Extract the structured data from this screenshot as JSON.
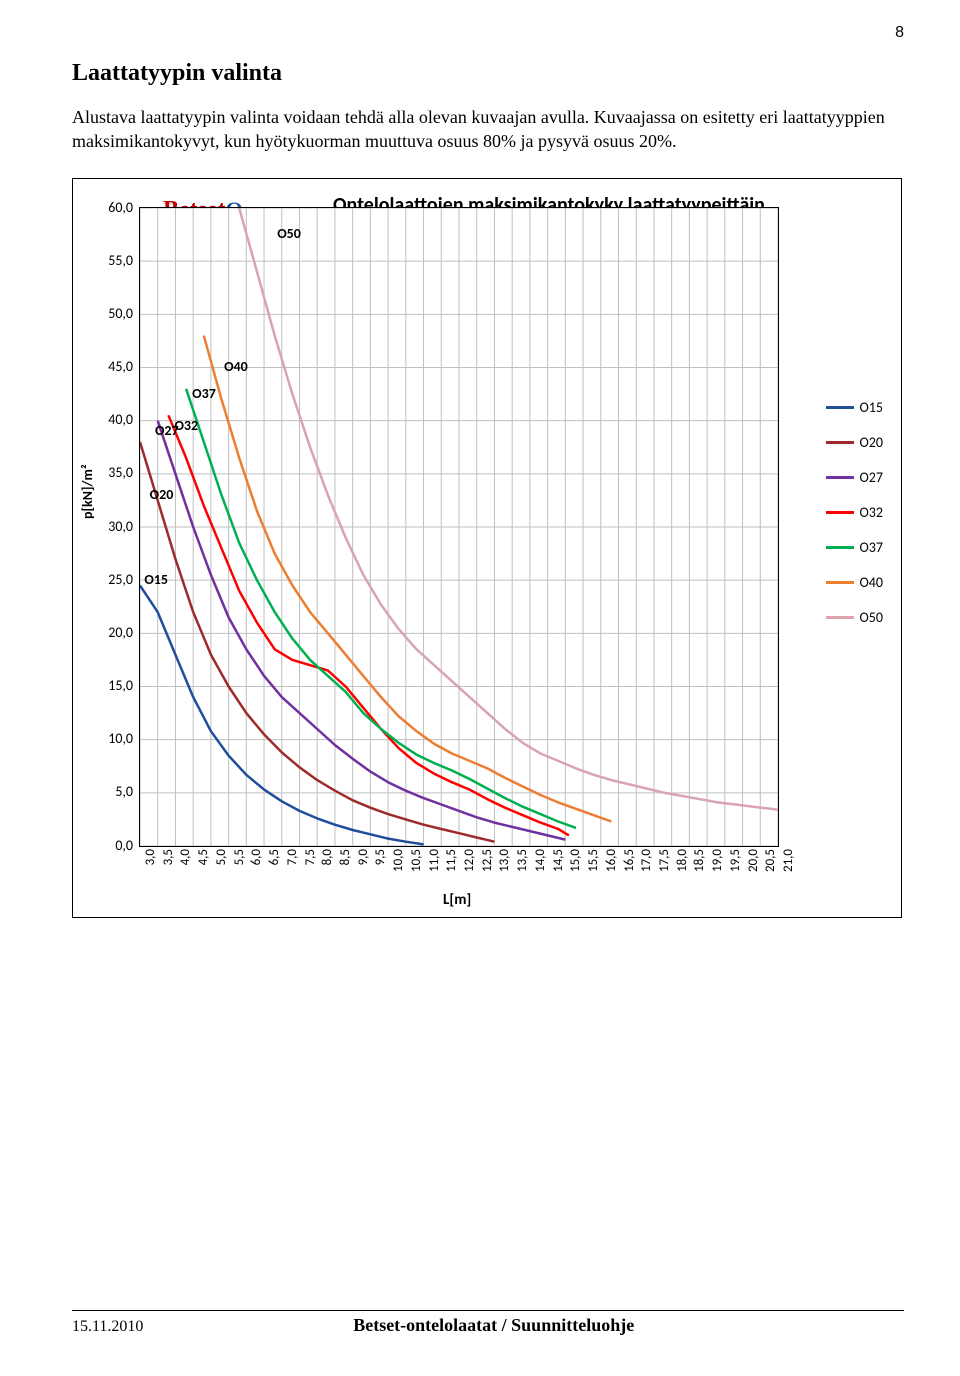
{
  "page_number": "8",
  "heading": "Laattatyypin valinta",
  "body": "Alustava laattatyypin valinta voidaan tehdä alla olevan kuvaajan avulla. Kuvaajassa on esitetty eri laattatyyppien maksimikantokyvyt, kun hyötykuorman muuttuva osuus 80% ja pysyvä osuus 20%.",
  "chart": {
    "title": "Ontelolaattojen maksimikantokyky laattatyypeittäin",
    "logo_main": "Betset",
    "logo_suffix": "Oy",
    "y_ticks": [
      "0,0",
      "5,0",
      "10,0",
      "15,0",
      "20,0",
      "25,0",
      "30,0",
      "35,0",
      "40,0",
      "45,0",
      "50,0",
      "55,0",
      "60,0"
    ],
    "y_label": "p[kN]/m²",
    "y_min": 0,
    "y_max": 60,
    "x_ticks": [
      "3,0",
      "3,5",
      "4,0",
      "4,5",
      "5,0",
      "5,5",
      "6,0",
      "6,5",
      "7,0",
      "7,5",
      "8,0",
      "8,5",
      "9,0",
      "9,5",
      "10,0",
      "10,5",
      "11,0",
      "11,5",
      "12,0",
      "12,5",
      "13,0",
      "13,5",
      "14,0",
      "14,5",
      "15,0",
      "15,5",
      "16,0",
      "16,5",
      "17,0",
      "17,5",
      "18,0",
      "18,5",
      "19,0",
      "19,5",
      "20,0",
      "20,5",
      "21,0"
    ],
    "x_label": "L[m]",
    "x_min": 3.0,
    "x_max": 21.0,
    "grid_color": "#bfbfbf",
    "series": [
      {
        "name": "O15",
        "color": "#1f4e9c",
        "label_pos": {
          "x": 3.15,
          "y": 25.0
        },
        "points": [
          [
            3.0,
            24.5
          ],
          [
            3.5,
            22.0
          ],
          [
            4.0,
            18.0
          ],
          [
            4.5,
            14.0
          ],
          [
            5.0,
            10.8
          ],
          [
            5.5,
            8.5
          ],
          [
            6.0,
            6.7
          ],
          [
            6.5,
            5.3
          ],
          [
            7.0,
            4.2
          ],
          [
            7.5,
            3.3
          ],
          [
            8.0,
            2.6
          ],
          [
            8.5,
            2.0
          ],
          [
            9.0,
            1.5
          ],
          [
            9.5,
            1.1
          ],
          [
            10.0,
            0.7
          ],
          [
            10.5,
            0.4
          ],
          [
            11.0,
            0.15
          ]
        ]
      },
      {
        "name": "O20",
        "color": "#9e2b2b",
        "label_pos": {
          "x": 3.3,
          "y": 33.0
        },
        "points": [
          [
            3.0,
            38.0
          ],
          [
            3.5,
            32.5
          ],
          [
            4.0,
            27.0
          ],
          [
            4.5,
            22.0
          ],
          [
            5.0,
            18.0
          ],
          [
            5.5,
            15.0
          ],
          [
            6.0,
            12.5
          ],
          [
            6.5,
            10.5
          ],
          [
            7.0,
            8.8
          ],
          [
            7.5,
            7.4
          ],
          [
            8.0,
            6.2
          ],
          [
            8.5,
            5.2
          ],
          [
            9.0,
            4.3
          ],
          [
            9.5,
            3.6
          ],
          [
            10.0,
            3.0
          ],
          [
            10.5,
            2.5
          ],
          [
            11.0,
            2.0
          ],
          [
            11.5,
            1.6
          ],
          [
            12.0,
            1.2
          ],
          [
            12.5,
            0.8
          ],
          [
            13.0,
            0.4
          ]
        ]
      },
      {
        "name": "O27",
        "color": "#7030a0",
        "label_pos": {
          "x": 3.45,
          "y": 39.0
        },
        "points": [
          [
            3.5,
            40.0
          ],
          [
            4.0,
            35.0
          ],
          [
            4.5,
            30.0
          ],
          [
            5.0,
            25.5
          ],
          [
            5.5,
            21.5
          ],
          [
            6.0,
            18.5
          ],
          [
            6.5,
            16.0
          ],
          [
            7.0,
            14.0
          ],
          [
            7.5,
            12.5
          ],
          [
            8.0,
            11.0
          ],
          [
            8.5,
            9.5
          ],
          [
            9.0,
            8.2
          ],
          [
            9.5,
            7.0
          ],
          [
            10.0,
            6.0
          ],
          [
            10.5,
            5.2
          ],
          [
            11.0,
            4.5
          ],
          [
            11.5,
            3.9
          ],
          [
            12.0,
            3.3
          ],
          [
            12.5,
            2.7
          ],
          [
            13.0,
            2.2
          ],
          [
            13.5,
            1.8
          ],
          [
            14.0,
            1.4
          ],
          [
            14.5,
            1.0
          ],
          [
            15.0,
            0.6
          ]
        ]
      },
      {
        "name": "O32",
        "color": "#ff0000",
        "label_pos": {
          "x": 4.0,
          "y": 39.5
        },
        "points": [
          [
            3.8,
            40.5
          ],
          [
            4.3,
            36.5
          ],
          [
            4.8,
            32.0
          ],
          [
            5.3,
            28.0
          ],
          [
            5.8,
            24.0
          ],
          [
            6.3,
            21.0
          ],
          [
            6.8,
            18.5
          ],
          [
            7.3,
            17.5
          ],
          [
            7.8,
            17.0
          ],
          [
            8.3,
            16.5
          ],
          [
            8.8,
            15.0
          ],
          [
            9.3,
            13.0
          ],
          [
            9.8,
            11.0
          ],
          [
            10.3,
            9.2
          ],
          [
            10.8,
            7.8
          ],
          [
            11.3,
            6.8
          ],
          [
            11.8,
            6.0
          ],
          [
            12.3,
            5.3
          ],
          [
            12.8,
            4.4
          ],
          [
            13.3,
            3.6
          ],
          [
            13.8,
            2.9
          ],
          [
            14.3,
            2.2
          ],
          [
            14.8,
            1.6
          ],
          [
            15.1,
            1.0
          ]
        ]
      },
      {
        "name": "O37",
        "color": "#00b050",
        "label_pos": {
          "x": 4.5,
          "y": 42.5
        },
        "points": [
          [
            4.3,
            43.0
          ],
          [
            4.8,
            38.0
          ],
          [
            5.3,
            33.0
          ],
          [
            5.8,
            28.5
          ],
          [
            6.3,
            25.0
          ],
          [
            6.8,
            22.0
          ],
          [
            7.3,
            19.5
          ],
          [
            7.8,
            17.5
          ],
          [
            8.3,
            16.0
          ],
          [
            8.8,
            14.5
          ],
          [
            9.3,
            12.5
          ],
          [
            9.8,
            11.0
          ],
          [
            10.3,
            9.7
          ],
          [
            10.8,
            8.6
          ],
          [
            11.3,
            7.8
          ],
          [
            11.8,
            7.1
          ],
          [
            12.3,
            6.3
          ],
          [
            12.8,
            5.4
          ],
          [
            13.3,
            4.5
          ],
          [
            13.8,
            3.7
          ],
          [
            14.3,
            3.0
          ],
          [
            14.8,
            2.3
          ],
          [
            15.3,
            1.7
          ]
        ]
      },
      {
        "name": "O40",
        "color": "#ed7d31",
        "label_pos": {
          "x": 5.4,
          "y": 45.0
        },
        "points": [
          [
            4.8,
            48.0
          ],
          [
            5.3,
            42.0
          ],
          [
            5.8,
            36.5
          ],
          [
            6.3,
            31.5
          ],
          [
            6.8,
            27.5
          ],
          [
            7.3,
            24.5
          ],
          [
            7.8,
            22.0
          ],
          [
            8.3,
            20.0
          ],
          [
            8.8,
            18.0
          ],
          [
            9.3,
            16.0
          ],
          [
            9.8,
            14.0
          ],
          [
            10.3,
            12.2
          ],
          [
            10.8,
            10.8
          ],
          [
            11.3,
            9.6
          ],
          [
            11.8,
            8.7
          ],
          [
            12.3,
            8.0
          ],
          [
            12.8,
            7.3
          ],
          [
            13.3,
            6.4
          ],
          [
            13.8,
            5.6
          ],
          [
            14.3,
            4.8
          ],
          [
            14.8,
            4.1
          ],
          [
            15.3,
            3.5
          ],
          [
            15.8,
            2.9
          ],
          [
            16.3,
            2.3
          ]
        ]
      },
      {
        "name": "O50",
        "color": "#d9a3b0",
        "label_pos": {
          "x": 6.9,
          "y": 57.5
        },
        "points": [
          [
            5.8,
            60.0
          ],
          [
            6.3,
            54.0
          ],
          [
            6.8,
            48.0
          ],
          [
            7.3,
            42.5
          ],
          [
            7.8,
            37.5
          ],
          [
            8.3,
            33.0
          ],
          [
            8.8,
            29.0
          ],
          [
            9.3,
            25.5
          ],
          [
            9.8,
            22.7
          ],
          [
            10.3,
            20.4
          ],
          [
            10.8,
            18.5
          ],
          [
            11.3,
            17.0
          ],
          [
            11.8,
            15.5
          ],
          [
            12.3,
            14.0
          ],
          [
            12.8,
            12.5
          ],
          [
            13.3,
            11.0
          ],
          [
            13.8,
            9.7
          ],
          [
            14.3,
            8.7
          ],
          [
            14.8,
            8.0
          ],
          [
            15.3,
            7.3
          ],
          [
            15.8,
            6.7
          ],
          [
            16.3,
            6.2
          ],
          [
            16.8,
            5.8
          ],
          [
            17.3,
            5.4
          ],
          [
            17.8,
            5.0
          ],
          [
            18.3,
            4.7
          ],
          [
            18.8,
            4.4
          ],
          [
            19.3,
            4.1
          ],
          [
            19.8,
            3.9
          ],
          [
            20.3,
            3.7
          ],
          [
            20.8,
            3.5
          ],
          [
            21.0,
            3.4
          ]
        ]
      }
    ],
    "legend": [
      "O15",
      "O20",
      "O27",
      "O32",
      "O37",
      "O40",
      "O50"
    ]
  },
  "footer_date": "15.11.2010",
  "footer_title": "Betset-ontelolaatat / Suunnitteluohje"
}
